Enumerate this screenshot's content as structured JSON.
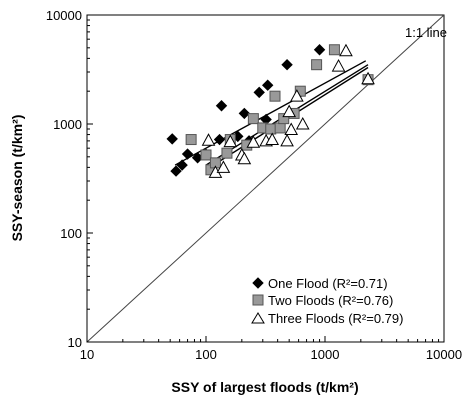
{
  "chart_data": {
    "type": "scatter",
    "scale": "log-log",
    "title": "",
    "xlabel": "SSY of largest floods (t/km²)",
    "ylabel": "SSY-season (t/km²)",
    "xlim": [
      10,
      10000
    ],
    "ylim": [
      10,
      10000
    ],
    "x_ticks": [
      "10",
      "100",
      "1000",
      "10000"
    ],
    "y_ticks": [
      "10",
      "100",
      "1000",
      "10000"
    ],
    "grid": false,
    "legend_position": "bottom-right",
    "reference_line": {
      "label": "1:1 line",
      "from": [
        10,
        10
      ],
      "to": [
        10000,
        10000
      ]
    },
    "series": [
      {
        "name": "One Flood (R²=0.71)",
        "marker": "diamond",
        "color": "#000000",
        "points": [
          [
            52,
            730
          ],
          [
            56,
            370
          ],
          [
            63,
            420
          ],
          [
            70,
            530
          ],
          [
            85,
            490
          ],
          [
            100,
            530
          ],
          [
            130,
            720
          ],
          [
            135,
            1470
          ],
          [
            185,
            770
          ],
          [
            210,
            1250
          ],
          [
            230,
            700
          ],
          [
            280,
            1950
          ],
          [
            320,
            1100
          ],
          [
            330,
            2270
          ],
          [
            480,
            3500
          ],
          [
            900,
            4800
          ]
        ],
        "fit": [
          [
            55,
            420
          ],
          [
            2200,
            3800
          ]
        ]
      },
      {
        "name": "Two Floods (R²=0.76)",
        "marker": "square",
        "color": "#999999",
        "points": [
          [
            75,
            720
          ],
          [
            100,
            520
          ],
          [
            110,
            380
          ],
          [
            120,
            440
          ],
          [
            150,
            540
          ],
          [
            160,
            720
          ],
          [
            220,
            640
          ],
          [
            250,
            1120
          ],
          [
            300,
            920
          ],
          [
            350,
            900
          ],
          [
            380,
            1800
          ],
          [
            420,
            920
          ],
          [
            450,
            1120
          ],
          [
            550,
            1250
          ],
          [
            620,
            2000
          ],
          [
            850,
            3500
          ],
          [
            1200,
            4800
          ],
          [
            2300,
            2550
          ]
        ],
        "fit": [
          [
            100,
            420
          ],
          [
            2300,
            3500
          ]
        ]
      },
      {
        "name": "Three Floods (R²=0.79)",
        "marker": "triangle",
        "color": "#ffffff",
        "points": [
          [
            105,
            710
          ],
          [
            120,
            360
          ],
          [
            140,
            400
          ],
          [
            160,
            690
          ],
          [
            200,
            520
          ],
          [
            210,
            480
          ],
          [
            250,
            680
          ],
          [
            320,
            700
          ],
          [
            360,
            720
          ],
          [
            480,
            700
          ],
          [
            500,
            1300
          ],
          [
            520,
            890
          ],
          [
            580,
            1800
          ],
          [
            650,
            1000
          ],
          [
            1300,
            3400
          ],
          [
            1500,
            4700
          ],
          [
            2300,
            2600
          ]
        ],
        "fit": [
          [
            100,
            380
          ],
          [
            2300,
            3300
          ]
        ]
      }
    ]
  }
}
